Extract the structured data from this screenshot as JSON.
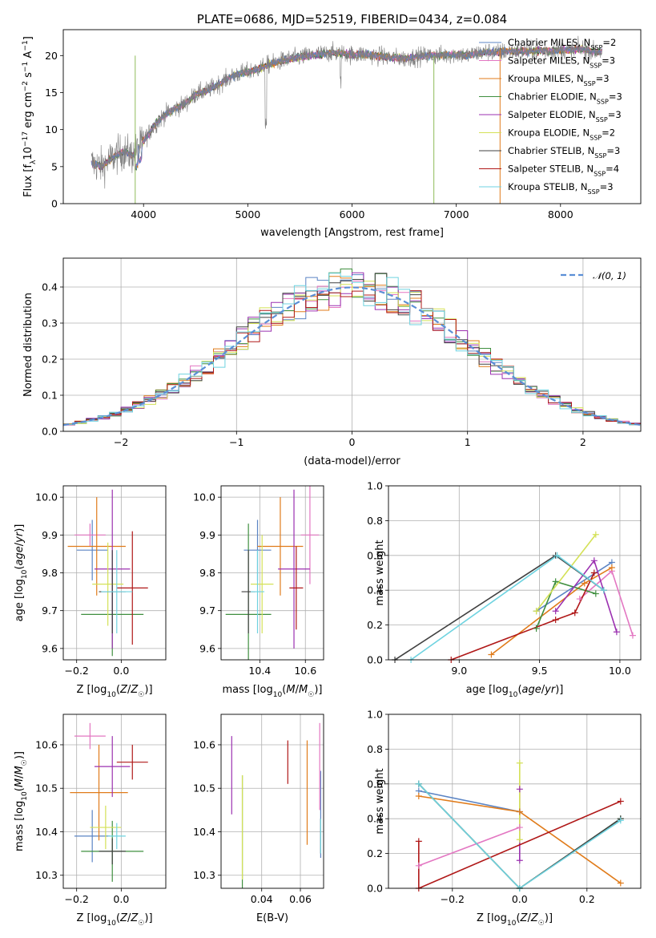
{
  "chart_data": [
    {
      "id": "spectrum",
      "type": "line",
      "title": "PLATE=0686, MJD=52519, FIBERID=0434, z=0.084",
      "xlabel": "wavelength [Angstrom, rest frame]",
      "ylabel": "Flux [f_λ10^-17 erg cm^-2 s^-1 A^-1]",
      "xlim": [
        3230,
        8770
      ],
      "ylim": [
        0,
        23.5
      ],
      "xticks": [
        4000,
        5000,
        6000,
        7000,
        8000
      ],
      "yticks": [
        0,
        5,
        10,
        15,
        20
      ],
      "grid": false,
      "legend_position": "top-right",
      "spectrum_shape": {
        "x": [
          3500,
          3600,
          3700,
          3800,
          3900,
          4000,
          4100,
          4200,
          4300,
          4400,
          4500,
          4600,
          4700,
          4800,
          4900,
          5000,
          5100,
          5200,
          5300,
          5400,
          5500,
          5600,
          5700,
          5800,
          5900,
          6000,
          6100,
          6200,
          6300,
          6400,
          6500,
          6600,
          6700,
          6800,
          6900,
          7000,
          7100,
          7200,
          7300,
          7400,
          7500,
          7600,
          7700,
          7800,
          7900,
          8000,
          8100,
          8200,
          8300,
          8400
        ],
        "y": [
          5.5,
          5.0,
          6.2,
          7.0,
          6.5,
          8.5,
          10.5,
          12.0,
          12.8,
          13.5,
          14.8,
          15.2,
          16.0,
          16.8,
          17.5,
          17.8,
          18.2,
          18.8,
          19.2,
          19.5,
          19.8,
          20.0,
          20.2,
          20.4,
          20.3,
          20.1,
          20.2,
          20.0,
          19.9,
          19.7,
          19.6,
          19.8,
          20.0,
          20.0,
          20.1,
          20.2,
          20.0,
          20.3,
          20.5,
          20.4,
          20.6,
          20.6,
          20.5,
          20.7,
          20.6,
          20.8,
          20.7,
          20.9,
          20.6,
          20.5
        ]
      },
      "series": [
        {
          "name": "Chabrier MILES, N_SSP=2",
          "color": "#5b84c4"
        },
        {
          "name": "Salpeter MILES, N_SSP=3",
          "color": "#e377c2"
        },
        {
          "name": "Kroupa MILES, N_SSP=3",
          "color": "#e07b1a"
        },
        {
          "name": "Chabrier ELODIE, N_SSP=3",
          "color": "#3f8f3f"
        },
        {
          "name": "Salpeter ELODIE, N_SSP=3",
          "color": "#9b30b0"
        },
        {
          "name": "Kroupa ELODIE, N_SSP=2",
          "color": "#d4e157"
        },
        {
          "name": "Chabrier STELIB, N_SSP=3",
          "color": "#404040"
        },
        {
          "name": "Salpeter STELIB, N_SSP=4",
          "color": "#b01818"
        },
        {
          "name": "Kroupa STELIB, N_SSP=3",
          "color": "#6fd3e0"
        }
      ],
      "data_trace_color": "#7f7f7f"
    },
    {
      "id": "residuals",
      "type": "line",
      "xlabel": "(data-model)/error",
      "ylabel": "Normed distribution",
      "xlim": [
        -2.5,
        2.5
      ],
      "ylim": [
        0,
        0.48
      ],
      "xticks": [
        -2,
        -1,
        0,
        1,
        2
      ],
      "yticks": [
        0.0,
        0.1,
        0.2,
        0.3,
        0.4
      ],
      "grid": true,
      "legend_position": "top-right",
      "gaussian": {
        "label": "𝒩(0, 1)",
        "mean": 0,
        "sigma": 1,
        "color": "#5b8fd6"
      },
      "histogram_bin_width": 0.1,
      "histogram_colors": [
        "#5b84c4",
        "#e377c2",
        "#e07b1a",
        "#3f8f3f",
        "#9b30b0",
        "#d4e157",
        "#404040",
        "#b01818",
        "#6fd3e0"
      ]
    },
    {
      "id": "age-vs-z",
      "type": "scatter",
      "xlabel": "Z [log10(Z/Z☉)]",
      "ylabel": "age  [log10(age/yr)]",
      "xlim": [
        -0.26,
        0.2
      ],
      "ylim": [
        9.57,
        10.03
      ],
      "xticks": [
        -0.2,
        0.0
      ],
      "yticks": [
        9.6,
        9.7,
        9.8,
        9.9,
        10.0
      ],
      "grid": true,
      "points": [
        {
          "x": -0.13,
          "y": 9.86,
          "xerr": 0.07,
          "yerr": 0.08,
          "color": "#5b84c4"
        },
        {
          "x": -0.14,
          "y": 9.9,
          "xerr": 0.07,
          "yerr": 0.03,
          "color": "#e377c2"
        },
        {
          "x": -0.11,
          "y": 9.87,
          "xerr": 0.13,
          "yerr": 0.13,
          "color": "#e07b1a"
        },
        {
          "x": -0.04,
          "y": 9.69,
          "xerr": 0.14,
          "yerr": 0.11,
          "color": "#3f8f3f"
        },
        {
          "x": -0.04,
          "y": 9.81,
          "xerr": 0.08,
          "yerr": 0.21,
          "color": "#9b30b0"
        },
        {
          "x": -0.06,
          "y": 9.77,
          "xerr": 0.07,
          "yerr": 0.11,
          "color": "#d4e157"
        },
        {
          "x": -0.04,
          "y": 9.75,
          "xerr": 0.06,
          "yerr": 0.11,
          "color": "#404040"
        },
        {
          "x": 0.05,
          "y": 9.76,
          "xerr": 0.07,
          "yerr": 0.15,
          "color": "#b01818"
        },
        {
          "x": -0.02,
          "y": 9.75,
          "xerr": 0.07,
          "yerr": 0.11,
          "color": "#6fd3e0"
        }
      ]
    },
    {
      "id": "age-vs-mass",
      "type": "scatter",
      "xlabel": "mass [log10(M/M☉)]",
      "ylabel": "",
      "xlim": [
        10.23,
        10.68
      ],
      "ylim": [
        9.57,
        10.03
      ],
      "xticks": [
        10.4,
        10.6
      ],
      "yticks": [
        9.6,
        9.7,
        9.8,
        9.9,
        10.0
      ],
      "grid": true,
      "points": [
        {
          "x": 10.39,
          "y": 9.86,
          "xerr": 0.06,
          "yerr": 0.08,
          "color": "#5b84c4"
        },
        {
          "x": 10.62,
          "y": 9.9,
          "xerr": 0.04,
          "yerr": 0.13,
          "color": "#e377c2"
        },
        {
          "x": 10.49,
          "y": 9.87,
          "xerr": 0.1,
          "yerr": 0.13,
          "color": "#e07b1a"
        },
        {
          "x": 10.35,
          "y": 9.69,
          "xerr": 0.1,
          "yerr": 0.24,
          "color": "#3f8f3f"
        },
        {
          "x": 10.55,
          "y": 9.81,
          "xerr": 0.07,
          "yerr": 0.21,
          "color": "#9b30b0"
        },
        {
          "x": 10.41,
          "y": 9.77,
          "xerr": 0.05,
          "yerr": 0.13,
          "color": "#d4e157"
        },
        {
          "x": 10.35,
          "y": 9.75,
          "xerr": 0.03,
          "yerr": 0.11,
          "color": "#404040"
        },
        {
          "x": 10.56,
          "y": 9.76,
          "xerr": 0.03,
          "yerr": 0.11,
          "color": "#b01818"
        },
        {
          "x": 10.39,
          "y": 9.75,
          "xerr": 0.03,
          "yerr": 0.11,
          "color": "#6fd3e0"
        }
      ]
    },
    {
      "id": "mass-weight-vs-age",
      "type": "line",
      "xlabel": "age  [log10(age/yr)]",
      "ylabel": "mass weight",
      "xlim": [
        8.56,
        10.13
      ],
      "ylim": [
        0,
        1.0
      ],
      "xticks": [
        9.0,
        9.5,
        10.0
      ],
      "yticks": [
        0.0,
        0.2,
        0.4,
        0.6,
        0.8,
        1.0
      ],
      "grid": true,
      "series": [
        {
          "color": "#5b84c4",
          "x": [
            9.48,
            9.95
          ],
          "y": [
            0.28,
            0.56
          ]
        },
        {
          "color": "#e377c2",
          "x": [
            9.75,
            9.95,
            10.08
          ],
          "y": [
            0.35,
            0.51,
            0.14
          ]
        },
        {
          "color": "#e07b1a",
          "x": [
            9.2,
            9.78,
            9.95
          ],
          "y": [
            0.03,
            0.44,
            0.53
          ]
        },
        {
          "color": "#3f8f3f",
          "x": [
            9.48,
            9.6,
            9.85
          ],
          "y": [
            0.18,
            0.45,
            0.38
          ]
        },
        {
          "color": "#9b30b0",
          "x": [
            9.6,
            9.84,
            9.98
          ],
          "y": [
            0.28,
            0.57,
            0.16
          ]
        },
        {
          "color": "#d4e157",
          "x": [
            9.48,
            9.85
          ],
          "y": [
            0.28,
            0.72
          ]
        },
        {
          "color": "#404040",
          "x": [
            8.6,
            9.6,
            9.9
          ],
          "y": [
            0.0,
            0.6,
            0.4
          ]
        },
        {
          "color": "#b01818",
          "x": [
            8.95,
            9.6,
            9.72,
            9.84
          ],
          "y": [
            0.0,
            0.23,
            0.27,
            0.5
          ]
        },
        {
          "color": "#6fd3e0",
          "x": [
            8.7,
            9.61,
            9.9
          ],
          "y": [
            0.0,
            0.6,
            0.4
          ]
        }
      ]
    },
    {
      "id": "mass-vs-z",
      "type": "scatter",
      "xlabel": "Z [log10(Z/Z☉)]",
      "ylabel": "mass [log10(M/M☉)]",
      "xlim": [
        -0.26,
        0.2
      ],
      "ylim": [
        10.27,
        10.67
      ],
      "xticks": [
        -0.2,
        0.0
      ],
      "yticks": [
        10.3,
        10.4,
        10.5,
        10.6
      ],
      "grid": true,
      "points": [
        {
          "x": -0.13,
          "y": 10.39,
          "xerr": 0.08,
          "yerr": 0.06,
          "color": "#5b84c4"
        },
        {
          "x": -0.14,
          "y": 10.62,
          "xerr": 0.07,
          "yerr": 0.03,
          "color": "#e377c2"
        },
        {
          "x": -0.1,
          "y": 10.49,
          "xerr": 0.13,
          "yerr": 0.11,
          "color": "#e07b1a"
        },
        {
          "x": -0.04,
          "y": 10.355,
          "xerr": 0.14,
          "yerr": 0.07,
          "color": "#3f8f3f"
        },
        {
          "x": -0.04,
          "y": 10.55,
          "xerr": 0.08,
          "yerr": 0.07,
          "color": "#9b30b0"
        },
        {
          "x": -0.07,
          "y": 10.41,
          "xerr": 0.07,
          "yerr": 0.05,
          "color": "#d4e157"
        },
        {
          "x": -0.04,
          "y": 10.355,
          "xerr": 0.06,
          "yerr": 0.03,
          "color": "#404040"
        },
        {
          "x": 0.05,
          "y": 10.56,
          "xerr": 0.07,
          "yerr": 0.04,
          "color": "#b01818"
        },
        {
          "x": -0.02,
          "y": 10.39,
          "xerr": 0.04,
          "yerr": 0.03,
          "color": "#6fd3e0"
        }
      ]
    },
    {
      "id": "mass-vs-ebv",
      "type": "scatter",
      "xlabel": "E(B-V)",
      "ylabel": "",
      "xlim": [
        0.019,
        0.072
      ],
      "ylim": [
        10.27,
        10.67
      ],
      "xticks": [
        0.04,
        0.06
      ],
      "yticks": [
        10.3,
        10.4,
        10.5,
        10.6
      ],
      "grid": true,
      "points": [
        {
          "x": 0.0705,
          "y": 10.44,
          "yerr": 0.1,
          "color": "#5b84c4"
        },
        {
          "x": 0.07,
          "y": 10.55,
          "yerr": 0.1,
          "color": "#e377c2"
        },
        {
          "x": 0.0635,
          "y": 10.49,
          "yerr": 0.12,
          "color": "#e07b1a"
        },
        {
          "x": 0.03,
          "y": 10.4,
          "yerr": 0.13,
          "color": "#3f8f3f"
        },
        {
          "x": 0.0245,
          "y": 10.53,
          "yerr": 0.09,
          "color": "#9b30b0"
        },
        {
          "x": 0.03,
          "y": 10.41,
          "yerr": 0.12,
          "color": "#d4e157"
        },
        {
          "x": 0.0705,
          "y": 10.39,
          "yerr": 0.04,
          "color": "#404040"
        },
        {
          "x": 0.0535,
          "y": 10.56,
          "yerr": 0.05,
          "color": "#b01818"
        },
        {
          "x": 0.0705,
          "y": 10.39,
          "yerr": 0.04,
          "color": "#6fd3e0"
        }
      ]
    },
    {
      "id": "mass-weight-vs-z",
      "type": "line",
      "xlabel": "Z [log10(Z/Z☉)]",
      "ylabel": "mass weight",
      "xlim": [
        -0.39,
        0.36
      ],
      "ylim": [
        0,
        1.0
      ],
      "xticks": [
        -0.2,
        0.0,
        0.2
      ],
      "yticks": [
        0.0,
        0.2,
        0.4,
        0.6,
        0.8,
        1.0
      ],
      "grid": true,
      "series": [
        {
          "color": "#5b84c4",
          "x": [
            -0.3,
            0.0
          ],
          "y": [
            0.56,
            0.44
          ]
        },
        {
          "color": "#e377c2",
          "x": [
            -0.3,
            0.0
          ],
          "y": [
            0.13,
            0.35
          ]
        },
        {
          "color": "#e07b1a",
          "x": [
            -0.3,
            0.0,
            0.3
          ],
          "y": [
            0.53,
            0.44,
            0.03
          ]
        },
        {
          "color": "#3f8f3f",
          "x": [
            -0.3,
            0.0,
            0.3
          ],
          "y": [
            0.6,
            0.0,
            0.4
          ]
        },
        {
          "color": "#9b30b0",
          "x": [
            0.0,
            0.0
          ],
          "y": [
            0.16,
            0.57
          ]
        },
        {
          "color": "#d4e157",
          "x": [
            0.0,
            0.0
          ],
          "y": [
            0.28,
            0.72
          ]
        },
        {
          "color": "#404040",
          "x": [
            -0.3,
            0.0,
            0.3
          ],
          "y": [
            0.6,
            0.0,
            0.4
          ]
        },
        {
          "color": "#b01818",
          "x": [
            -0.3,
            -0.3,
            0.3
          ],
          "y": [
            0.27,
            0.0,
            0.5
          ]
        },
        {
          "color": "#6fd3e0",
          "x": [
            -0.3,
            0.0,
            0.3
          ],
          "y": [
            0.6,
            0.0,
            0.39
          ]
        }
      ]
    }
  ]
}
